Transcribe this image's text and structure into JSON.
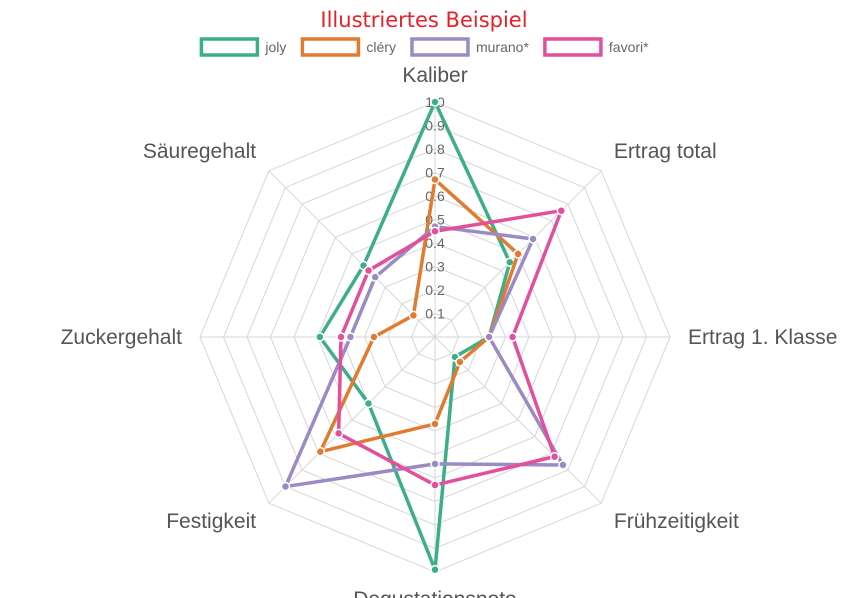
{
  "chart_data": {
    "type": "radar",
    "title": "Illustriertes Beispiel",
    "axes": [
      "Kaliber",
      "Ertrag total",
      "Ertrag 1. Klasse",
      "Frühzeitigkeit",
      "Degustationsnote",
      "Festigkeit",
      "Zuckergehalt",
      "Säuregehalt"
    ],
    "ticks": [
      "0.1",
      "0.2",
      "0.3",
      "0.4",
      "0.5",
      "0.6",
      "0.7",
      "0.8",
      "0.9",
      "1.0"
    ],
    "rlim": [
      0,
      1
    ],
    "grid": true,
    "legend_position": "top",
    "series": [
      {
        "name": "joly",
        "color": "#3cae8c",
        "values": [
          1.0,
          0.45,
          0.23,
          0.12,
          0.99,
          0.4,
          0.49,
          0.43
        ]
      },
      {
        "name": "cléry",
        "color": "#e17b30",
        "values": [
          0.67,
          0.5,
          0.23,
          0.15,
          0.37,
          0.69,
          0.26,
          0.13
        ]
      },
      {
        "name": "murano*",
        "color": "#9b8ac4",
        "values": [
          0.47,
          0.59,
          0.23,
          0.77,
          0.54,
          0.9,
          0.36,
          0.36
        ]
      },
      {
        "name": "favori*",
        "color": "#e44f9c",
        "values": [
          0.45,
          0.76,
          0.33,
          0.72,
          0.63,
          0.58,
          0.4,
          0.4
        ]
      }
    ]
  }
}
